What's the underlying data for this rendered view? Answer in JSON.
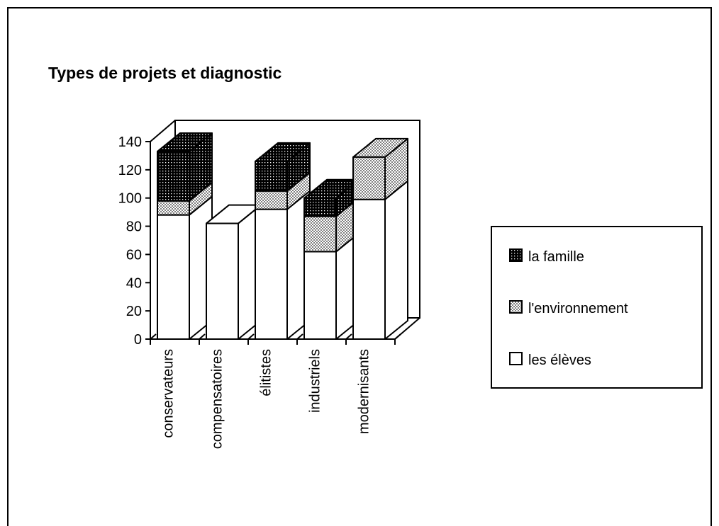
{
  "chart_data": {
    "type": "bar3d_stacked",
    "title": "Types de projets et diagnostic",
    "categories": [
      "conservateurs",
      "compensatoires",
      "élitistes",
      "industriels",
      "modernisants"
    ],
    "series": [
      {
        "name": "les élèves",
        "color": "#ffffff",
        "values": [
          88,
          82,
          92,
          62,
          99
        ]
      },
      {
        "name": "l'environnement",
        "color": "#808080",
        "values": [
          10,
          0,
          13,
          25,
          30
        ]
      },
      {
        "name": "la famille",
        "color": "#000000",
        "values": [
          35,
          0,
          21,
          13,
          0
        ]
      }
    ],
    "ylim": [
      0,
      140
    ],
    "yticks": [
      0,
      20,
      40,
      60,
      80,
      100,
      120,
      140
    ]
  }
}
